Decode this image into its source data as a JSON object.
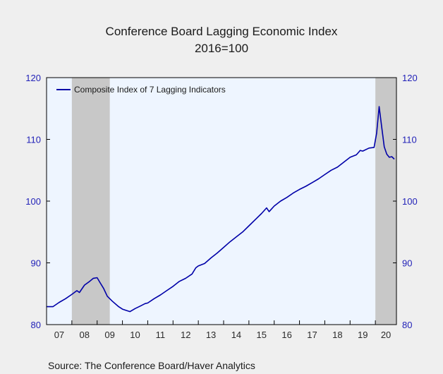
{
  "chart_data": {
    "type": "line",
    "title": "Conference Board Lagging Economic Index",
    "subtitle": "2016=100",
    "source": "Source:  The Conference Board/Haver Analytics",
    "ylim": [
      80,
      120
    ],
    "yticks": [
      80,
      90,
      100,
      110,
      120
    ],
    "x_range": [
      2007.0,
      2020.833
    ],
    "xtick_labels": [
      "07",
      "08",
      "09",
      "10",
      "11",
      "12",
      "13",
      "14",
      "15",
      "16",
      "17",
      "18",
      "19",
      "20"
    ],
    "grid": false,
    "legend_position": "top-left",
    "recessions": [
      {
        "start": 2008.0,
        "end": 2009.5
      },
      {
        "start": 2020.0,
        "end": 2020.833
      }
    ],
    "colors": {
      "series": "#0000a8",
      "recession": "#c8c8c8",
      "plot_bg": "#eef5ff",
      "axis_text": "#2222b8"
    },
    "series": [
      {
        "name": "Composite Index of 7 Lagging Indicators",
        "points": [
          [
            2007.0,
            82.9
          ],
          [
            2007.25,
            82.9
          ],
          [
            2007.5,
            83.6
          ],
          [
            2007.75,
            84.2
          ],
          [
            2008.0,
            84.9
          ],
          [
            2008.2,
            85.5
          ],
          [
            2008.3,
            85.2
          ],
          [
            2008.5,
            86.4
          ],
          [
            2008.7,
            87.0
          ],
          [
            2008.85,
            87.5
          ],
          [
            2009.0,
            87.6
          ],
          [
            2009.1,
            86.9
          ],
          [
            2009.25,
            85.9
          ],
          [
            2009.4,
            84.6
          ],
          [
            2009.6,
            83.8
          ],
          [
            2009.85,
            82.9
          ],
          [
            2010.0,
            82.5
          ],
          [
            2010.15,
            82.3
          ],
          [
            2010.3,
            82.1
          ],
          [
            2010.5,
            82.6
          ],
          [
            2010.7,
            83.0
          ],
          [
            2010.9,
            83.4
          ],
          [
            2011.0,
            83.5
          ],
          [
            2011.25,
            84.2
          ],
          [
            2011.5,
            84.8
          ],
          [
            2011.75,
            85.5
          ],
          [
            2012.0,
            86.2
          ],
          [
            2012.25,
            87.0
          ],
          [
            2012.5,
            87.5
          ],
          [
            2012.75,
            88.2
          ],
          [
            2012.9,
            89.2
          ],
          [
            2013.0,
            89.5
          ],
          [
            2013.25,
            89.9
          ],
          [
            2013.5,
            90.8
          ],
          [
            2013.75,
            91.6
          ],
          [
            2014.0,
            92.5
          ],
          [
            2014.25,
            93.4
          ],
          [
            2014.5,
            94.2
          ],
          [
            2014.75,
            95.0
          ],
          [
            2015.0,
            96.0
          ],
          [
            2015.25,
            97.0
          ],
          [
            2015.5,
            98.0
          ],
          [
            2015.7,
            98.9
          ],
          [
            2015.8,
            98.3
          ],
          [
            2016.0,
            99.2
          ],
          [
            2016.25,
            100.0
          ],
          [
            2016.5,
            100.6
          ],
          [
            2016.75,
            101.3
          ],
          [
            2017.0,
            101.9
          ],
          [
            2017.25,
            102.4
          ],
          [
            2017.5,
            103.0
          ],
          [
            2017.75,
            103.6
          ],
          [
            2018.0,
            104.3
          ],
          [
            2018.25,
            105.0
          ],
          [
            2018.5,
            105.5
          ],
          [
            2018.75,
            106.3
          ],
          [
            2019.0,
            107.1
          ],
          [
            2019.25,
            107.5
          ],
          [
            2019.4,
            108.2
          ],
          [
            2019.5,
            108.1
          ],
          [
            2019.75,
            108.6
          ],
          [
            2019.95,
            108.7
          ],
          [
            2020.05,
            111.0
          ],
          [
            2020.15,
            115.3
          ],
          [
            2020.25,
            112.0
          ],
          [
            2020.35,
            108.8
          ],
          [
            2020.45,
            107.6
          ],
          [
            2020.55,
            107.1
          ],
          [
            2020.65,
            107.2
          ],
          [
            2020.75,
            106.8
          ]
        ]
      }
    ]
  }
}
